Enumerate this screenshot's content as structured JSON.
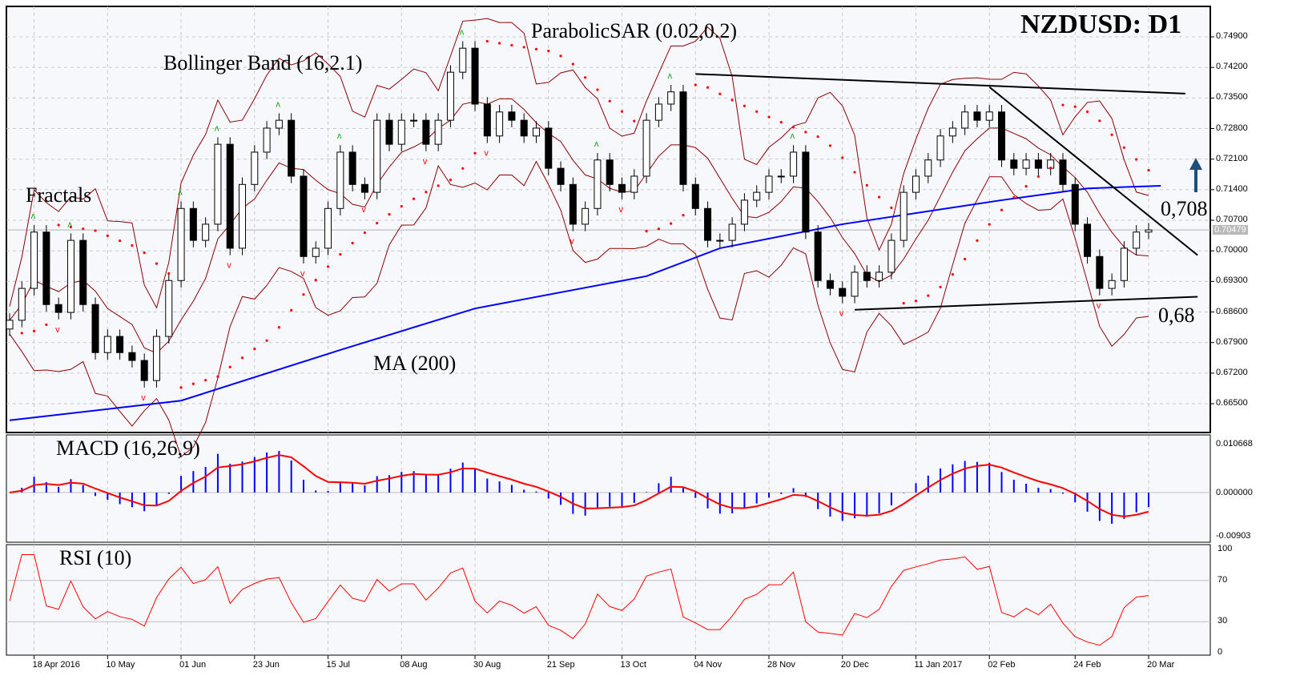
{
  "chart_data": [
    {
      "type": "candlestick",
      "title": "NZDUSD: D1",
      "symbol": "NZDUSD",
      "timeframe": "D1",
      "ylim": [
        0.662,
        0.752
      ],
      "y_ticks": [
        "0.74900",
        "0.74200",
        "0.73500",
        "0.72800",
        "0.72100",
        "0.71400",
        "0.70700",
        "0.70000",
        "0.69300",
        "0.68600",
        "0.67900",
        "0.67200",
        "0.66500"
      ],
      "current_price": "0.70479",
      "x_ticks": [
        {
          "label": "18 Apr 2016",
          "index": 2
        },
        {
          "label": "10 May",
          "index": 8
        },
        {
          "label": "01 Jun",
          "index": 14
        },
        {
          "label": "23 Jun",
          "index": 20
        },
        {
          "label": "15 Jul",
          "index": 26
        },
        {
          "label": "08 Aug",
          "index": 32
        },
        {
          "label": "30 Aug",
          "index": 38
        },
        {
          "label": "21 Sep",
          "index": 44
        },
        {
          "label": "13 Oct",
          "index": 50
        },
        {
          "label": "04 Nov",
          "index": 56
        },
        {
          "label": "28 Nov",
          "index": 62
        },
        {
          "label": "20 Dec",
          "index": 68
        },
        {
          "label": "11 Jan 2017",
          "index": 74
        },
        {
          "label": "02 Feb",
          "index": 80
        },
        {
          "label": "24 Feb",
          "index": 87
        },
        {
          "label": "20 Mar",
          "index": 93
        }
      ],
      "closes": [
        0.6841,
        0.6914,
        0.7043,
        0.6877,
        0.6859,
        0.7024,
        0.6877,
        0.6767,
        0.6804,
        0.6767,
        0.6749,
        0.6703,
        0.6804,
        0.6932,
        0.7097,
        0.7024,
        0.7061,
        0.7244,
        0.7006,
        0.7152,
        0.7226,
        0.7281,
        0.7299,
        0.7171,
        0.6987,
        0.7006,
        0.7097,
        0.7226,
        0.7152,
        0.7134,
        0.7299,
        0.7244,
        0.7299,
        0.7299,
        0.7244,
        0.7299,
        0.7409,
        0.7464,
        0.7336,
        0.7263,
        0.7318,
        0.7299,
        0.7263,
        0.7281,
        0.7189,
        0.7152,
        0.7061,
        0.7097,
        0.7208,
        0.7152,
        0.7134,
        0.7171,
        0.7299,
        0.7336,
        0.7364,
        0.7152,
        0.7097,
        0.7024,
        0.7024,
        0.7061,
        0.7116,
        0.7134,
        0.7171,
        0.7171,
        0.7226,
        0.7043,
        0.6932,
        0.6914,
        0.6896,
        0.6951,
        0.6932,
        0.6951,
        0.7024,
        0.7134,
        0.7171,
        0.7208,
        0.7263,
        0.7281,
        0.7318,
        0.7299,
        0.7318,
        0.7208,
        0.7189,
        0.7208,
        0.7189,
        0.7208,
        0.7152,
        0.7061,
        0.6987,
        0.6914,
        0.6932,
        0.7006,
        0.7043,
        0.70479
      ],
      "ma200": [
        {
          "index": 0,
          "value": 0.6612
        },
        {
          "index": 14,
          "value": 0.6657
        },
        {
          "index": 27,
          "value": 0.6773
        },
        {
          "index": 38,
          "value": 0.6868
        },
        {
          "index": 52,
          "value": 0.6942
        },
        {
          "index": 58,
          "value": 0.7006
        },
        {
          "index": 68,
          "value": 0.7061
        },
        {
          "index": 81,
          "value": 0.7116
        },
        {
          "index": 88,
          "value": 0.7143
        },
        {
          "index": 94,
          "value": 0.7149
        }
      ],
      "trendlines": [
        {
          "from": {
            "index": 56,
            "value": 0.7405
          },
          "to": {
            "index": 96,
            "value": 0.736
          }
        },
        {
          "from": {
            "index": 80,
            "value": 0.7375
          },
          "to": {
            "index": 97,
            "value": 0.699
          }
        },
        {
          "from": {
            "index": 69,
            "value": 0.6865
          },
          "to": {
            "index": 97,
            "value": 0.6895
          }
        }
      ],
      "annotations": {
        "parabolic_sar": "ParabolicSAR (0.02,0.2)",
        "bollinger": "Bollinger Band (16,2.1)",
        "fractals": "Fractals",
        "ma": "MA (200)",
        "resistance": "0,708",
        "support": "0,68"
      },
      "signal": "up-arrow",
      "colors": {
        "ma": "#0000ff",
        "bollinger": "#8b0000",
        "sar": "#ff0000",
        "fractal_up": "#00aa00",
        "fractal_down": "#ff0000",
        "arrow": "#1f4e79"
      }
    },
    {
      "type": "bar-line",
      "title": "MACD (16,26,9)",
      "y_ticks": [
        "0.010668",
        "0.000000",
        "-0.00903"
      ],
      "colors": {
        "histogram": "#0000ff",
        "signal": "#ff0000"
      }
    },
    {
      "type": "line",
      "title": "RSI (10)",
      "ylim": [
        0,
        100
      ],
      "y_ticks": [
        "100",
        "70",
        "30",
        "0"
      ],
      "levels": [
        70,
        30
      ],
      "colors": {
        "line": "#ff0000"
      }
    }
  ]
}
